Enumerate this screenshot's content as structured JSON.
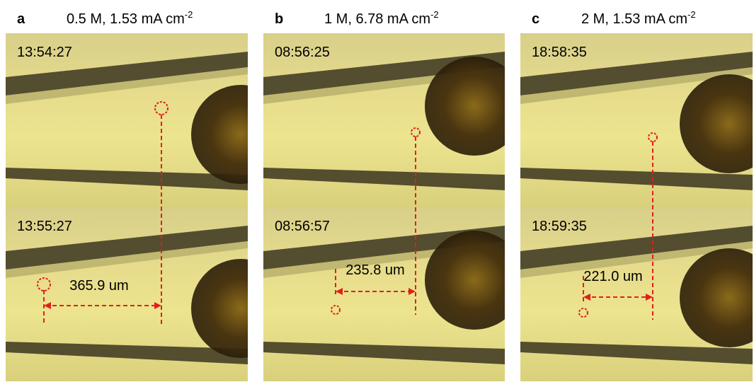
{
  "panels": [
    {
      "letter": "a",
      "condition": "0.5 M, 1.53 mA cm",
      "exponent": "-2",
      "frames": [
        {
          "time": "13:54:27"
        },
        {
          "time": "13:55:27"
        }
      ],
      "measurement": "365.9 um"
    },
    {
      "letter": "b",
      "condition": "1 M, 6.78 mA cm",
      "exponent": "-2",
      "frames": [
        {
          "time": "08:56:25"
        },
        {
          "time": "08:56:57"
        }
      ],
      "measurement": "235.8 um"
    },
    {
      "letter": "c",
      "condition": "2 M, 1.53 mA cm",
      "exponent": "-2",
      "frames": [
        {
          "time": "18:58:35"
        },
        {
          "time": "18:59:35"
        }
      ],
      "measurement": "221.0 um"
    }
  ]
}
